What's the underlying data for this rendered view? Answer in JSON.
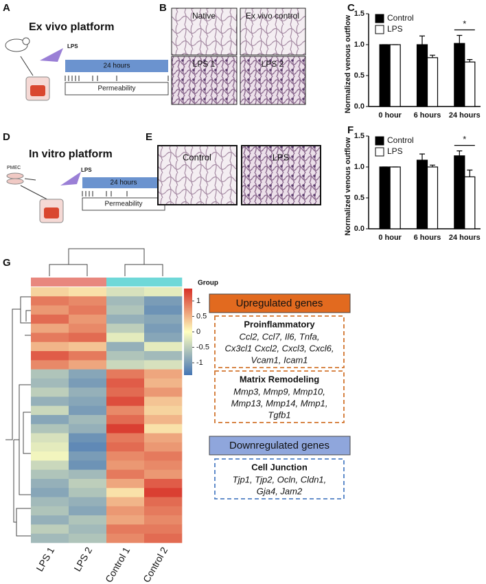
{
  "panel_labels": [
    "A",
    "B",
    "C",
    "D",
    "E",
    "F",
    "G"
  ],
  "panel_a": {
    "title": "Ex vivo platform",
    "stimulus": "LPS",
    "timeline": "24 hours",
    "readout": "Permeability"
  },
  "panel_b": {
    "images": [
      "Native",
      "Ex vivo control",
      "LPS 1",
      "LPS 2"
    ]
  },
  "panel_d": {
    "title": "In vitro platform",
    "cells": "PMEC",
    "stimulus": "LPS",
    "timeline": "24 hours",
    "readout": "Permeability"
  },
  "panel_e": {
    "images": [
      "Control",
      "LPS"
    ]
  },
  "chart_data": [
    {
      "type": "bar",
      "ylabel": "Normalized venous outflow",
      "categories": [
        "0 hour",
        "6 hours",
        "24 hours"
      ],
      "series": [
        {
          "name": "Control",
          "color": "#000000",
          "values": [
            1.0,
            1.0,
            1.02
          ],
          "errors": [
            0,
            0.14,
            0.13
          ]
        },
        {
          "name": "LPS",
          "color": "#ffffff",
          "values": [
            1.0,
            0.79,
            0.72
          ],
          "errors": [
            0,
            0.04,
            0.04
          ]
        }
      ],
      "ylim": [
        0,
        1.5
      ],
      "yticks": [
        {
          "value": 0,
          "label": "0.0"
        },
        {
          "value": 0.5,
          "label": "0.5"
        },
        {
          "value": 1,
          "label": "1.0"
        },
        {
          "value": 1.5,
          "label": "1.5"
        }
      ],
      "legend": "upper left",
      "significance": "*"
    },
    {
      "type": "bar",
      "ylabel": "Normalized venous outflow",
      "categories": [
        "0 hour",
        "6 hours",
        "24 hours"
      ],
      "series": [
        {
          "name": "Control",
          "color": "#000000",
          "values": [
            1.0,
            1.11,
            1.18
          ],
          "errors": [
            0,
            0.1,
            0.08
          ]
        },
        {
          "name": "LPS",
          "color": "#ffffff",
          "values": [
            1.0,
            1.0,
            0.84
          ],
          "errors": [
            0,
            0.03,
            0.11
          ]
        }
      ],
      "ylim": [
        0,
        1.5
      ],
      "yticks": [
        {
          "value": 0,
          "label": "0.0"
        },
        {
          "value": 0.5,
          "label": "0.5"
        },
        {
          "value": 1,
          "label": "1.0"
        },
        {
          "value": 1.5,
          "label": "1.5"
        }
      ],
      "legend": "upper left",
      "significance": "*"
    }
  ],
  "heatmap": {
    "columns": [
      "LPS 1",
      "LPS 2",
      "Control 1",
      "Control 2"
    ],
    "group_colors": [
      "#e8877e",
      "#e8877e",
      "#6fd8d8",
      "#6fd8d8"
    ],
    "legend_title": "Group",
    "colorbar_ticks": [
      1,
      0.5,
      0,
      -0.5,
      -1
    ],
    "colorbar_lim": [
      -1.4,
      1.4
    ],
    "values": [
      [
        0.3,
        0.2,
        -0.3,
        -0.2
      ],
      [
        0.9,
        0.8,
        -0.7,
        -1.0
      ],
      [
        0.7,
        0.9,
        -0.6,
        -1.1
      ],
      [
        1.0,
        0.7,
        -0.8,
        -0.9
      ],
      [
        0.6,
        0.8,
        -0.5,
        -1.0
      ],
      [
        0.9,
        1.0,
        -0.2,
        -0.9
      ],
      [
        0.5,
        0.4,
        -0.8,
        -0.2
      ],
      [
        1.1,
        0.9,
        -0.6,
        -0.7
      ],
      [
        0.8,
        0.6,
        -0.4,
        -0.3
      ],
      [
        -0.6,
        -0.9,
        0.9,
        0.6
      ],
      [
        -0.7,
        -1.0,
        1.1,
        0.5
      ],
      [
        -0.5,
        -0.8,
        1.0,
        0.7
      ],
      [
        -0.8,
        -0.9,
        1.2,
        0.4
      ],
      [
        -0.4,
        -1.0,
        0.8,
        0.3
      ],
      [
        -0.9,
        -0.7,
        1.0,
        0.5
      ],
      [
        -0.6,
        -0.8,
        1.3,
        0.2
      ],
      [
        -0.3,
        -1.1,
        0.9,
        0.6
      ],
      [
        -0.2,
        -1.2,
        1.0,
        0.7
      ],
      [
        -0.1,
        -1.0,
        0.8,
        0.9
      ],
      [
        -0.4,
        -1.1,
        0.7,
        0.8
      ],
      [
        -0.6,
        -0.7,
        0.9,
        0.7
      ],
      [
        -0.8,
        -0.5,
        0.6,
        1.1
      ],
      [
        -0.9,
        -0.6,
        0.2,
        1.3
      ],
      [
        -0.7,
        -0.8,
        0.5,
        1.0
      ],
      [
        -0.6,
        -0.9,
        0.7,
        0.9
      ],
      [
        -0.8,
        -0.6,
        0.6,
        0.8
      ],
      [
        -0.5,
        -0.7,
        0.9,
        0.9
      ],
      [
        -0.7,
        -0.6,
        0.8,
        1.0
      ]
    ]
  },
  "gene_boxes": {
    "upregulated": "Upregulated genes",
    "downregulated": "Downregulated genes",
    "groups": [
      {
        "title": "Proinflammatory",
        "lines": [
          "Ccl2, Ccl7, Il6, Tnfa,",
          "Cx3cl1 Cxcl2, Cxcl3, Cxcl6,",
          "Vcam1, Icam1"
        ]
      },
      {
        "title": "Matrix Remodeling",
        "lines": [
          "Mmp3, Mmp9, Mmp10,",
          "Mmp13, Mmp14, Mmp1,",
          "Tgfb1"
        ]
      },
      {
        "title": "Cell Junction",
        "lines": [
          "Tjp1, Tjp2, Ocln, Cldn1,",
          "Gja4, Jam2"
        ]
      }
    ]
  }
}
